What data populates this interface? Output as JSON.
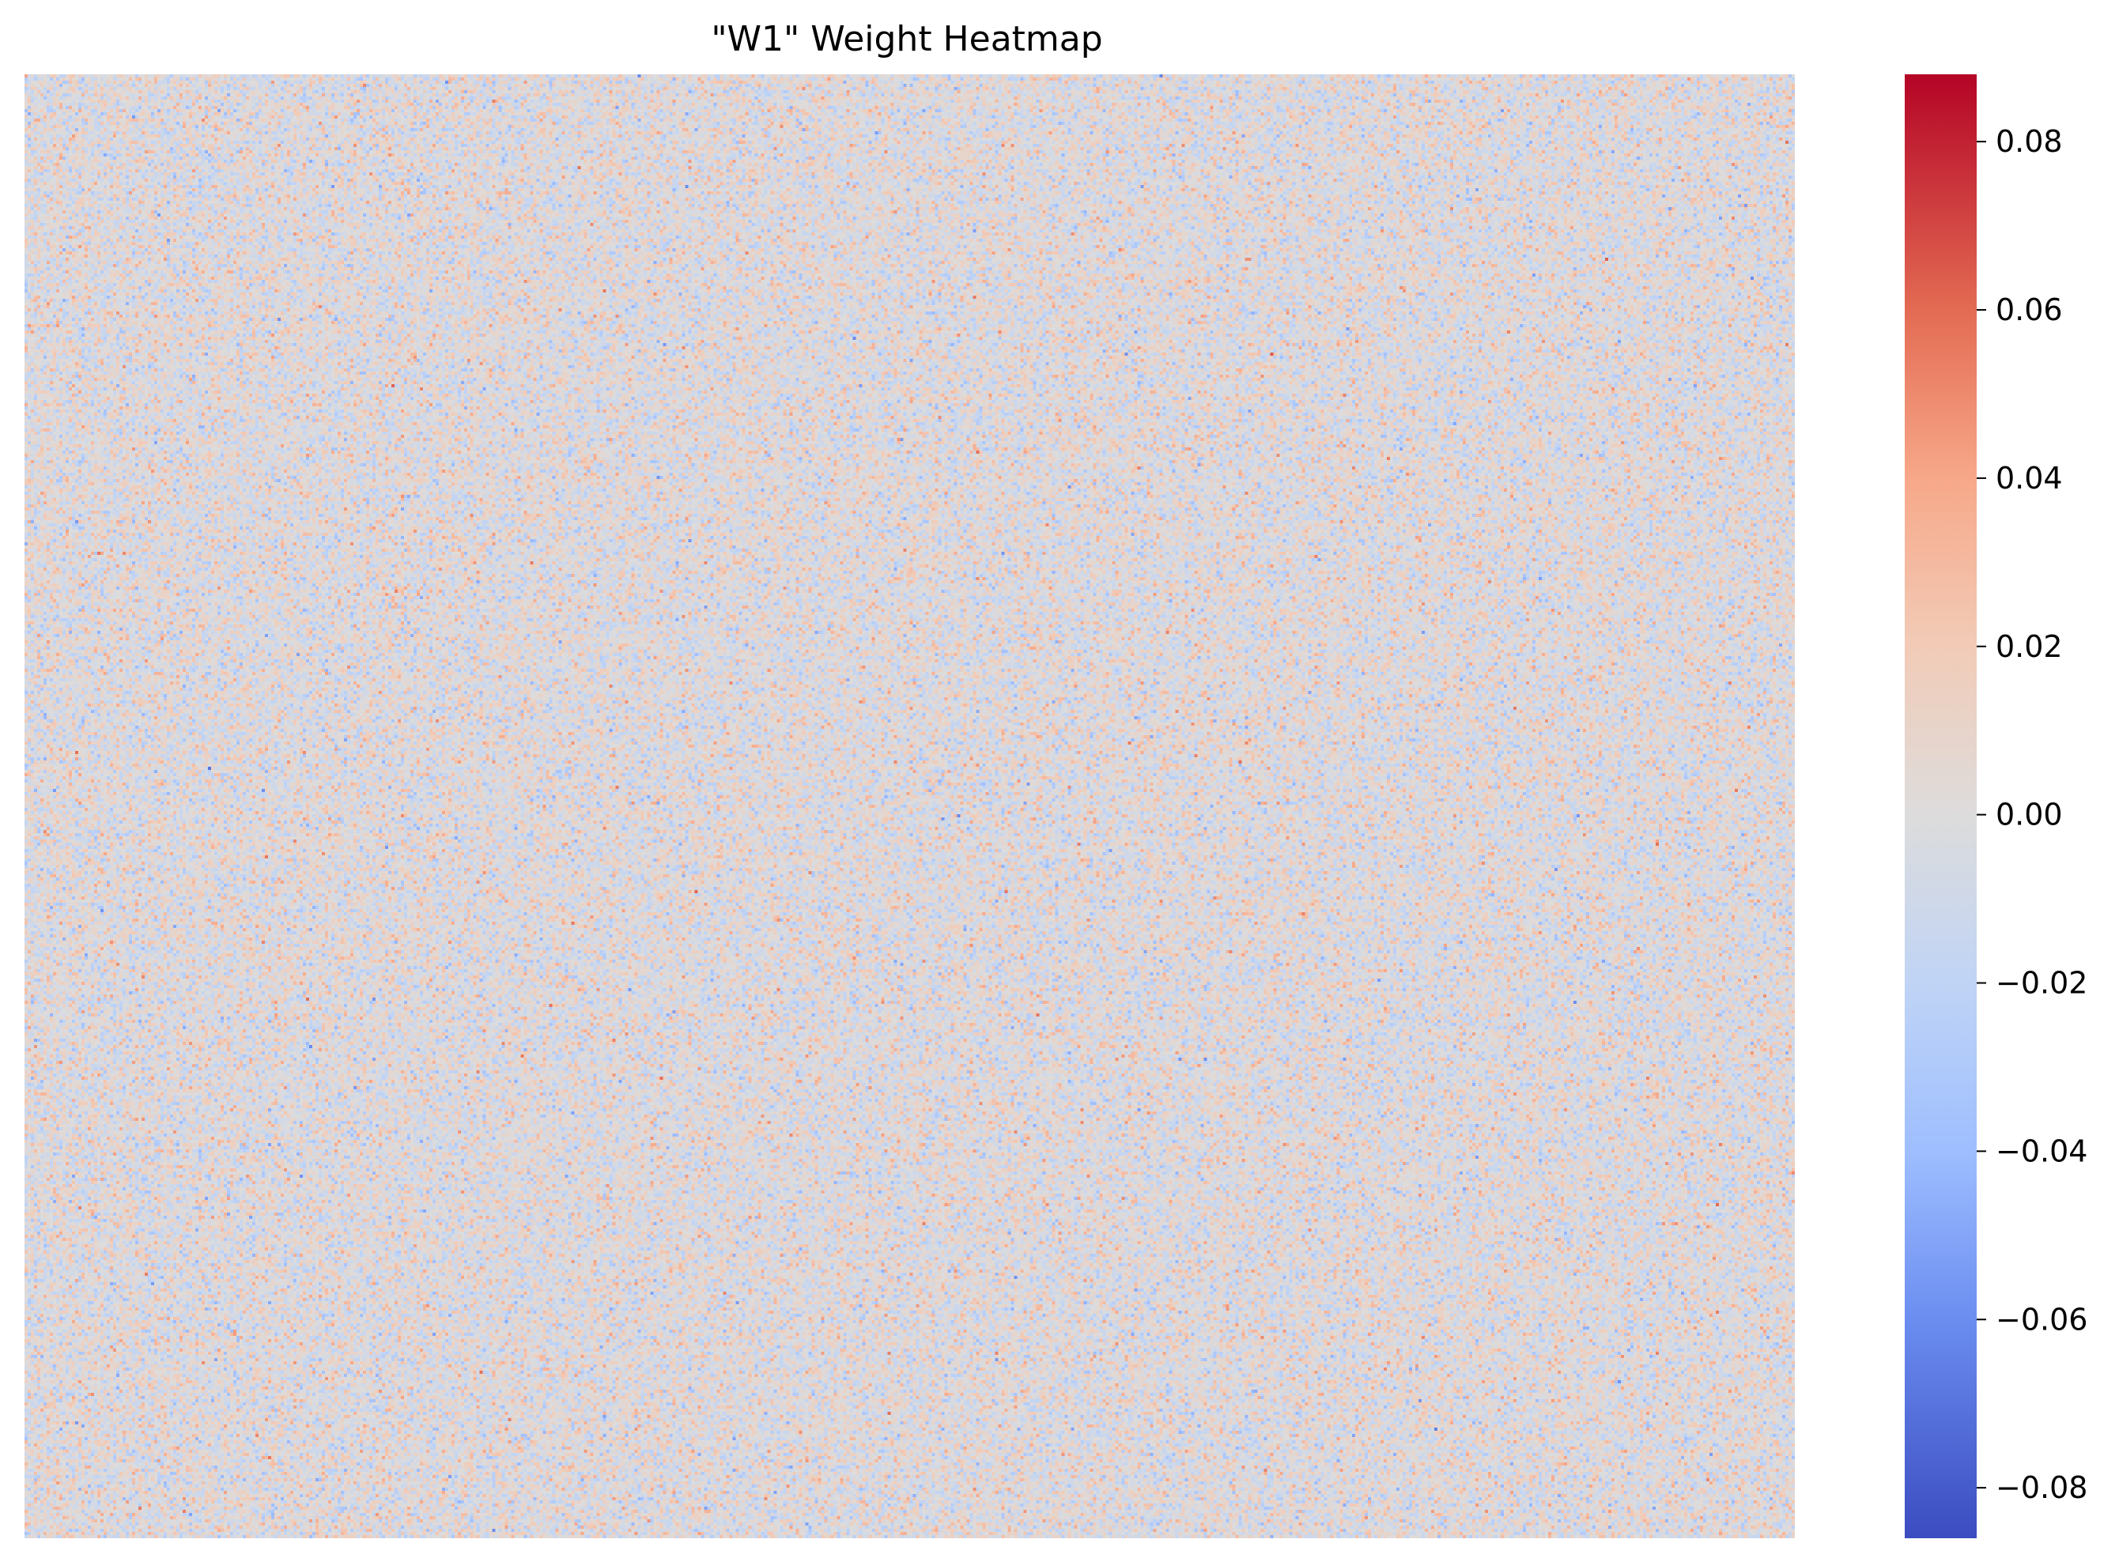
{
  "chart_data": {
    "type": "heatmap",
    "title": "\"W1\" Weight Heatmap",
    "xlabel": "",
    "ylabel": "",
    "x_ticks_shown": false,
    "y_ticks_shown": false,
    "matrix_description_values": {
      "mean": 0.0,
      "typical_spread": 0.015,
      "min": -0.086,
      "max": 0.088
    },
    "colormap": {
      "name": "coolwarm",
      "stops": [
        {
          "value": -0.086,
          "color": "#3b4cc0"
        },
        {
          "value": -0.06,
          "color": "#6b8df0"
        },
        {
          "value": -0.04,
          "color": "#9ebeff"
        },
        {
          "value": -0.02,
          "color": "#c0d4f5"
        },
        {
          "value": 0.0,
          "color": "#dddcdc"
        },
        {
          "value": 0.02,
          "color": "#f2cbb7"
        },
        {
          "value": 0.04,
          "color": "#f7a889"
        },
        {
          "value": 0.06,
          "color": "#e36b53"
        },
        {
          "value": 0.088,
          "color": "#b40426"
        }
      ]
    },
    "colorbar": {
      "vmin": -0.086,
      "vmax": 0.088,
      "ticks": [
        {
          "value": 0.08,
          "label": "0.08"
        },
        {
          "value": 0.06,
          "label": "0.06"
        },
        {
          "value": 0.04,
          "label": "0.04"
        },
        {
          "value": 0.02,
          "label": "0.02"
        },
        {
          "value": 0.0,
          "label": "0.00"
        },
        {
          "value": -0.02,
          "label": "−0.02"
        },
        {
          "value": -0.04,
          "label": "−0.04"
        },
        {
          "value": -0.06,
          "label": "−0.06"
        },
        {
          "value": -0.08,
          "label": "−0.08"
        }
      ]
    }
  }
}
